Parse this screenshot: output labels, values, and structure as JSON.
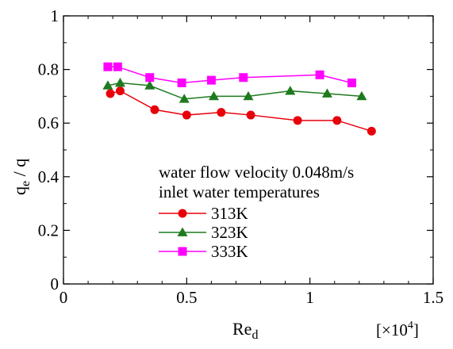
{
  "chart_data": {
    "type": "line",
    "title": "",
    "xlabel": "Re",
    "xlabel_subscript": "d",
    "ylabel": "q",
    "ylabel_subscript": "e",
    "ylabel_suffix": " / q",
    "x_multiplier_label": "[×10",
    "x_multiplier_exponent": "4",
    "x_multiplier_close": "]",
    "xlim": [
      0,
      1.5
    ],
    "ylim": [
      0,
      1
    ],
    "xticks": [
      0,
      0.5,
      1,
      1.5
    ],
    "xtick_labels": [
      "0",
      "0.5",
      "1",
      "1.5"
    ],
    "yticks": [
      0,
      0.2,
      0.4,
      0.6,
      0.8,
      1
    ],
    "ytick_labels": [
      "0",
      "0.2",
      "0.4",
      "0.6",
      "0.8",
      "1"
    ],
    "grid": false,
    "legend": {
      "placement": "bottom-right",
      "title_line1": "water flow velocity 0.048m/s",
      "title_line2": "inlet water temperatures"
    },
    "series": [
      {
        "name": "313K",
        "color": "#e8000b",
        "marker": "circle",
        "x": [
          0.19,
          0.23,
          0.37,
          0.5,
          0.64,
          0.76,
          0.95,
          1.11,
          1.25
        ],
        "y": [
          0.71,
          0.72,
          0.65,
          0.63,
          0.64,
          0.63,
          0.61,
          0.61,
          0.57
        ]
      },
      {
        "name": "323K",
        "color": "#1e7a1e",
        "marker": "triangle",
        "x": [
          0.18,
          0.23,
          0.35,
          0.49,
          0.61,
          0.75,
          0.92,
          1.07,
          1.21
        ],
        "y": [
          0.74,
          0.75,
          0.74,
          0.69,
          0.7,
          0.7,
          0.72,
          0.71,
          0.7
        ]
      },
      {
        "name": "333K",
        "color": "#ff00ff",
        "marker": "square",
        "x": [
          0.18,
          0.22,
          0.35,
          0.48,
          0.6,
          0.73,
          1.04,
          1.17
        ],
        "y": [
          0.81,
          0.81,
          0.77,
          0.75,
          0.76,
          0.77,
          0.78,
          0.75
        ]
      }
    ]
  }
}
